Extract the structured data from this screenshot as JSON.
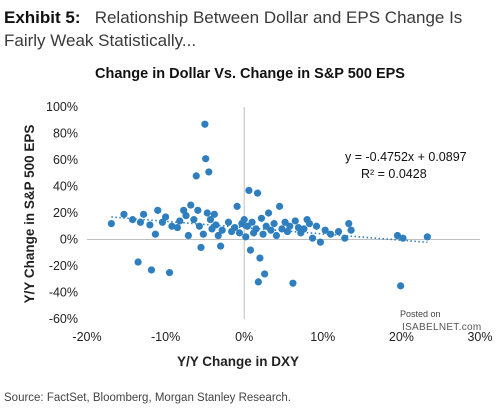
{
  "exhibit": {
    "label": "Exhibit 5:",
    "title": "Relationship Between Dollar and EPS Change Is Fairly Weak Statistically..."
  },
  "source": "Source: FactSet, Bloomberg, Morgan Stanley Research.",
  "watermark": {
    "line1": "Posted on",
    "line2": "ISABELNET.com"
  },
  "colors": {
    "points": "#2f7fbf",
    "trend": "#2f7fbf",
    "axis": "#bfbfbf"
  },
  "chart_data": {
    "type": "scatter",
    "title": "Change in Dollar Vs. Change in S&P 500 EPS",
    "xlabel": "Y/Y Change in DXY",
    "ylabel": "Y/Y Change in S&P 500 EPS",
    "xlim": [
      -0.2,
      0.3
    ],
    "ylim": [
      -0.6,
      1.0
    ],
    "x_ticks": [
      "-20%",
      "-10%",
      "0%",
      "10%",
      "20%",
      "30%"
    ],
    "y_ticks": [
      "100%",
      "80%",
      "60%",
      "40%",
      "20%",
      "0%",
      "-20%",
      "-40%",
      "-60%"
    ],
    "grid": false,
    "trendline": {
      "slope": -0.4752,
      "intercept": 0.0897,
      "style": "dotted"
    },
    "annotations": [
      "y = -0.4752x + 0.0897",
      "R² = 0.0428"
    ],
    "points": [
      {
        "x": -0.169,
        "y": 0.12
      },
      {
        "x": -0.153,
        "y": 0.19
      },
      {
        "x": -0.142,
        "y": 0.15
      },
      {
        "x": -0.135,
        "y": -0.17
      },
      {
        "x": -0.132,
        "y": 0.13
      },
      {
        "x": -0.128,
        "y": 0.19
      },
      {
        "x": -0.12,
        "y": 0.11
      },
      {
        "x": -0.118,
        "y": -0.23
      },
      {
        "x": -0.113,
        "y": 0.04
      },
      {
        "x": -0.11,
        "y": 0.22
      },
      {
        "x": -0.104,
        "y": 0.13
      },
      {
        "x": -0.1,
        "y": 0.17
      },
      {
        "x": -0.095,
        "y": -0.25
      },
      {
        "x": -0.092,
        "y": 0.1
      },
      {
        "x": -0.085,
        "y": 0.09
      },
      {
        "x": -0.082,
        "y": 0.14
      },
      {
        "x": -0.077,
        "y": 0.22
      },
      {
        "x": -0.074,
        "y": 0.18
      },
      {
        "x": -0.071,
        "y": 0.03
      },
      {
        "x": -0.068,
        "y": 0.26
      },
      {
        "x": -0.064,
        "y": 0.15
      },
      {
        "x": -0.061,
        "y": 0.48
      },
      {
        "x": -0.059,
        "y": 0.22
      },
      {
        "x": -0.057,
        "y": 0.1
      },
      {
        "x": -0.055,
        "y": -0.06
      },
      {
        "x": -0.052,
        "y": 0.04
      },
      {
        "x": -0.05,
        "y": 0.87
      },
      {
        "x": -0.049,
        "y": 0.61
      },
      {
        "x": -0.047,
        "y": 0.2
      },
      {
        "x": -0.045,
        "y": 0.51
      },
      {
        "x": -0.043,
        "y": 0.15
      },
      {
        "x": -0.041,
        "y": 0.08
      },
      {
        "x": -0.038,
        "y": 0.19
      },
      {
        "x": -0.036,
        "y": 0.11
      },
      {
        "x": -0.033,
        "y": 0.03
      },
      {
        "x": -0.03,
        "y": -0.05
      },
      {
        "x": -0.028,
        "y": 0.07
      },
      {
        "x": -0.02,
        "y": 0.13
      },
      {
        "x": -0.016,
        "y": 0.06
      },
      {
        "x": -0.012,
        "y": 0.09
      },
      {
        "x": -0.009,
        "y": 0.25
      },
      {
        "x": -0.006,
        "y": 0.05
      },
      {
        "x": -0.003,
        "y": 0.12
      },
      {
        "x": 0.0,
        "y": 0.15
      },
      {
        "x": 0.002,
        "y": 0.02
      },
      {
        "x": 0.004,
        "y": 0.1
      },
      {
        "x": 0.006,
        "y": 0.37
      },
      {
        "x": 0.008,
        "y": -0.08
      },
      {
        "x": 0.01,
        "y": 0.13
      },
      {
        "x": 0.012,
        "y": 0.05
      },
      {
        "x": 0.015,
        "y": 0.08
      },
      {
        "x": 0.017,
        "y": 0.35
      },
      {
        "x": 0.018,
        "y": -0.32
      },
      {
        "x": 0.02,
        "y": -0.14
      },
      {
        "x": 0.022,
        "y": 0.16
      },
      {
        "x": 0.024,
        "y": 0.04
      },
      {
        "x": 0.026,
        "y": -0.26
      },
      {
        "x": 0.028,
        "y": 0.1
      },
      {
        "x": 0.031,
        "y": 0.2
      },
      {
        "x": 0.034,
        "y": 0.07
      },
      {
        "x": 0.038,
        "y": 0.12
      },
      {
        "x": 0.041,
        "y": 0.03
      },
      {
        "x": 0.045,
        "y": 0.25
      },
      {
        "x": 0.048,
        "y": 0.08
      },
      {
        "x": 0.052,
        "y": 0.13
      },
      {
        "x": 0.055,
        "y": 0.06
      },
      {
        "x": 0.058,
        "y": 0.1
      },
      {
        "x": 0.062,
        "y": -0.33
      },
      {
        "x": 0.065,
        "y": 0.14
      },
      {
        "x": 0.069,
        "y": 0.09
      },
      {
        "x": 0.072,
        "y": 0.05
      },
      {
        "x": 0.076,
        "y": 0.08
      },
      {
        "x": 0.08,
        "y": 0.15
      },
      {
        "x": 0.083,
        "y": 0.12
      },
      {
        "x": 0.087,
        "y": 0.01
      },
      {
        "x": 0.092,
        "y": 0.1
      },
      {
        "x": 0.097,
        "y": -0.02
      },
      {
        "x": 0.103,
        "y": 0.07
      },
      {
        "x": 0.11,
        "y": 0.04
      },
      {
        "x": 0.12,
        "y": 0.06
      },
      {
        "x": 0.128,
        "y": 0.01
      },
      {
        "x": 0.133,
        "y": 0.12
      },
      {
        "x": 0.136,
        "y": 0.07
      },
      {
        "x": 0.195,
        "y": 0.03
      },
      {
        "x": 0.199,
        "y": -0.35
      },
      {
        "x": 0.202,
        "y": 0.01
      },
      {
        "x": 0.233,
        "y": 0.02
      }
    ]
  }
}
